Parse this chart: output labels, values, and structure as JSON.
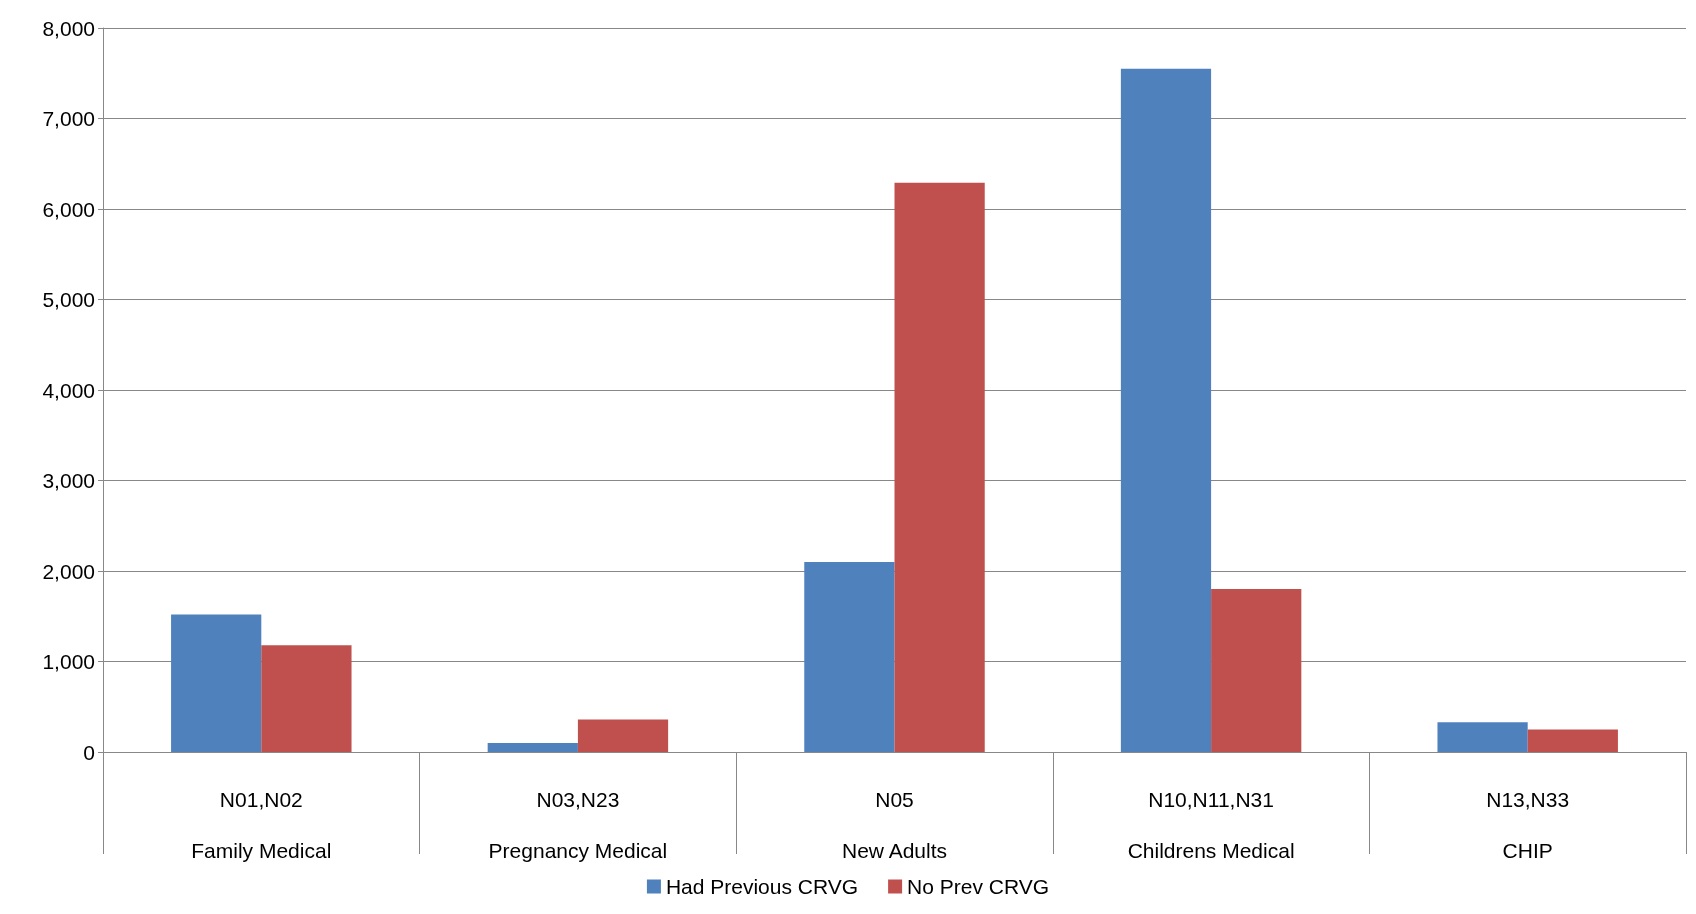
{
  "chart_data": {
    "type": "bar",
    "categories": [
      "N01,N02\nFamily Medical",
      "N03,N23\nPregnancy Medical",
      "N05\nNew Adults",
      "N10,N11,N31\nChildrens Medical",
      "N13,N33\nCHIP"
    ],
    "series": [
      {
        "name": "Had Previous CRVG",
        "color": "#4f81bd",
        "values": [
          1520,
          100,
          2100,
          7550,
          330
        ]
      },
      {
        "name": "No Prev CRVG",
        "color": "#c0504d",
        "values": [
          1180,
          360,
          6290,
          1800,
          250
        ]
      }
    ],
    "ylim": [
      0,
      8000
    ],
    "yticks": [
      {
        "value": 0,
        "label": "0"
      },
      {
        "value": 1000,
        "label": "1,000"
      },
      {
        "value": 2000,
        "label": "2,000"
      },
      {
        "value": 3000,
        "label": "3,000"
      },
      {
        "value": 4000,
        "label": "4,000"
      },
      {
        "value": 5000,
        "label": "5,000"
      },
      {
        "value": 6000,
        "label": "6,000"
      },
      {
        "value": 7000,
        "label": "7,000"
      },
      {
        "value": 8000,
        "label": "8,000"
      }
    ],
    "grid": "y",
    "legend": "bottom"
  }
}
